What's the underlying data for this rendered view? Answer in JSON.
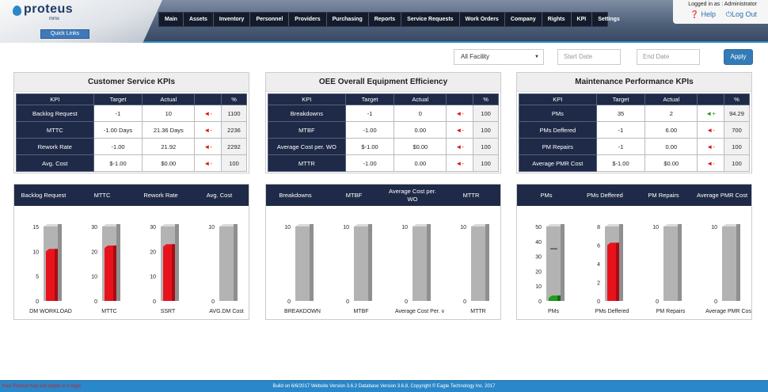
{
  "app": {
    "logo_text": "proteus",
    "logo_sub": "mmx",
    "quick_links": "Quick Links",
    "logged_in": "Logged in as : Administrator",
    "help": "Help",
    "logout": "Log Out",
    "help_icon": "question-circle-icon",
    "logout_icon": "power-icon"
  },
  "menu": [
    "Main",
    "Assets",
    "Inventory",
    "Personnel",
    "Providers",
    "Purchasing",
    "Reports",
    "Service Requests",
    "Work Orders",
    "Company",
    "Rights",
    "KPI",
    "Settings"
  ],
  "filters": {
    "facility": "All Facility",
    "start_date_placeholder": "Start Date",
    "end_date_placeholder": "End Date",
    "apply": "Apply"
  },
  "kpi_columns": [
    "KPI",
    "Target",
    "Actual",
    "",
    "%"
  ],
  "kpi_panels": [
    {
      "title": "Customer Service KPIs",
      "rows": [
        {
          "kpi": "Backlog Request",
          "target": "-1",
          "actual": "10",
          "trend": "down",
          "pct": "1100"
        },
        {
          "kpi": "MTTC",
          "target": "-1.00 Days",
          "actual": "21.36 Days",
          "trend": "down",
          "pct": "2236"
        },
        {
          "kpi": "Rework Rate",
          "target": "-1.00",
          "actual": "21.92",
          "trend": "down",
          "pct": "2292"
        },
        {
          "kpi": "Avg. Cost",
          "target": "$-1.00",
          "actual": "$0.00",
          "trend": "down",
          "pct": "100"
        }
      ]
    },
    {
      "title": "OEE Overall Equipment Efficiency",
      "rows": [
        {
          "kpi": "Breakdowns",
          "target": "-1",
          "actual": "0",
          "trend": "down",
          "pct": "100"
        },
        {
          "kpi": "MTBF",
          "target": "-1.00",
          "actual": "0.00",
          "trend": "down",
          "pct": "100"
        },
        {
          "kpi": "Average Cost per. WO",
          "target": "$-1.00",
          "actual": "$0.00",
          "trend": "down",
          "pct": "100"
        },
        {
          "kpi": "MTTR",
          "target": "-1.00",
          "actual": "0.00",
          "trend": "down",
          "pct": "100"
        }
      ]
    },
    {
      "title": "Maintenance Performance KPIs",
      "rows": [
        {
          "kpi": "PMs",
          "target": "35",
          "actual": "2",
          "trend": "up",
          "pct": "94.29"
        },
        {
          "kpi": "PMs Deffered",
          "target": "-1",
          "actual": "6.00",
          "trend": "down",
          "pct": "700"
        },
        {
          "kpi": "PM Repairs",
          "target": "-1",
          "actual": "0.00",
          "trend": "down",
          "pct": "100"
        },
        {
          "kpi": "Average PMR Cost",
          "target": "$-1.00",
          "actual": "$0.00",
          "trend": "down",
          "pct": "100"
        }
      ]
    }
  ],
  "trend_glyphs": {
    "down": "◄-",
    "up": "◄+"
  },
  "chart_panels": [
    {
      "headers": [
        "Backlog Request",
        "MTTC",
        "Rework Rate",
        "Avg. Cost"
      ]
    },
    {
      "headers": [
        "Breakdowns",
        "MTBF",
        "Average Cost per. WO",
        "MTTR"
      ]
    },
    {
      "headers": [
        "PMs",
        "PMs Deffered",
        "PM Repairs",
        "Average PMR Cost"
      ]
    }
  ],
  "chart_data": [
    {
      "type": "bar",
      "title": "",
      "category": "DM WORKLOAD",
      "ticks": [
        0,
        5,
        10,
        15
      ],
      "ylim": [
        0,
        15
      ],
      "value": 10,
      "color": "#e8121c"
    },
    {
      "type": "bar",
      "title": "",
      "category": "MTTC",
      "ticks": [
        0,
        10,
        20,
        30
      ],
      "ylim": [
        0,
        30
      ],
      "value": 21.36,
      "color": "#e8121c"
    },
    {
      "type": "bar",
      "title": "",
      "category": "SSRT",
      "ticks": [
        0,
        10,
        20,
        30
      ],
      "ylim": [
        0,
        30
      ],
      "value": 21.92,
      "color": "#e8121c"
    },
    {
      "type": "bar",
      "title": "",
      "category": "AVG.DM Cost",
      "ticks": [
        0,
        10
      ],
      "ylim": [
        0,
        10
      ],
      "value": 0,
      "color": "#e8121c"
    },
    {
      "type": "bar",
      "title": "",
      "category": "BREAKDOWN",
      "ticks": [
        0,
        10
      ],
      "ylim": [
        0,
        10
      ],
      "value": 0,
      "color": "#e8121c"
    },
    {
      "type": "bar",
      "title": "",
      "category": "MTBF",
      "ticks": [
        0,
        10
      ],
      "ylim": [
        0,
        10
      ],
      "value": 0,
      "color": "#e8121c"
    },
    {
      "type": "bar",
      "title": "",
      "category": "Average Cost Per. v",
      "ticks": [
        0,
        10
      ],
      "ylim": [
        0,
        10
      ],
      "value": 0,
      "color": "#e8121c"
    },
    {
      "type": "bar",
      "title": "",
      "category": "MTTR",
      "ticks": [
        0,
        10
      ],
      "ylim": [
        0,
        10
      ],
      "value": 0,
      "color": "#e8121c"
    },
    {
      "type": "bar",
      "title": "",
      "category": "PMs",
      "ticks": [
        0,
        10,
        20,
        30,
        40,
        50
      ],
      "ylim": [
        0,
        50
      ],
      "value": 2,
      "target": 35,
      "color": "#1c9a1c"
    },
    {
      "type": "bar",
      "title": "",
      "category": "PMs Deffered",
      "ticks": [
        0,
        2,
        4,
        6,
        8
      ],
      "ylim": [
        0,
        8
      ],
      "value": 6,
      "color": "#e8121c"
    },
    {
      "type": "bar",
      "title": "",
      "category": "PM Repairs",
      "ticks": [
        0,
        10
      ],
      "ylim": [
        0,
        10
      ],
      "value": 0,
      "color": "#e8121c"
    },
    {
      "type": "bar",
      "title": "",
      "category": "Average PMR Cost",
      "ticks": [
        0,
        10
      ],
      "ylim": [
        0,
        10
      ],
      "value": 0,
      "color": "#e8121c"
    }
  ],
  "footer": {
    "left": "Your Product Key will expire in 4 days",
    "build": "Build on 6/6/2017 Website Version 3.6.2 Database Version 3.6.8, Copyright © Eagle Technology Inc. 2017"
  }
}
